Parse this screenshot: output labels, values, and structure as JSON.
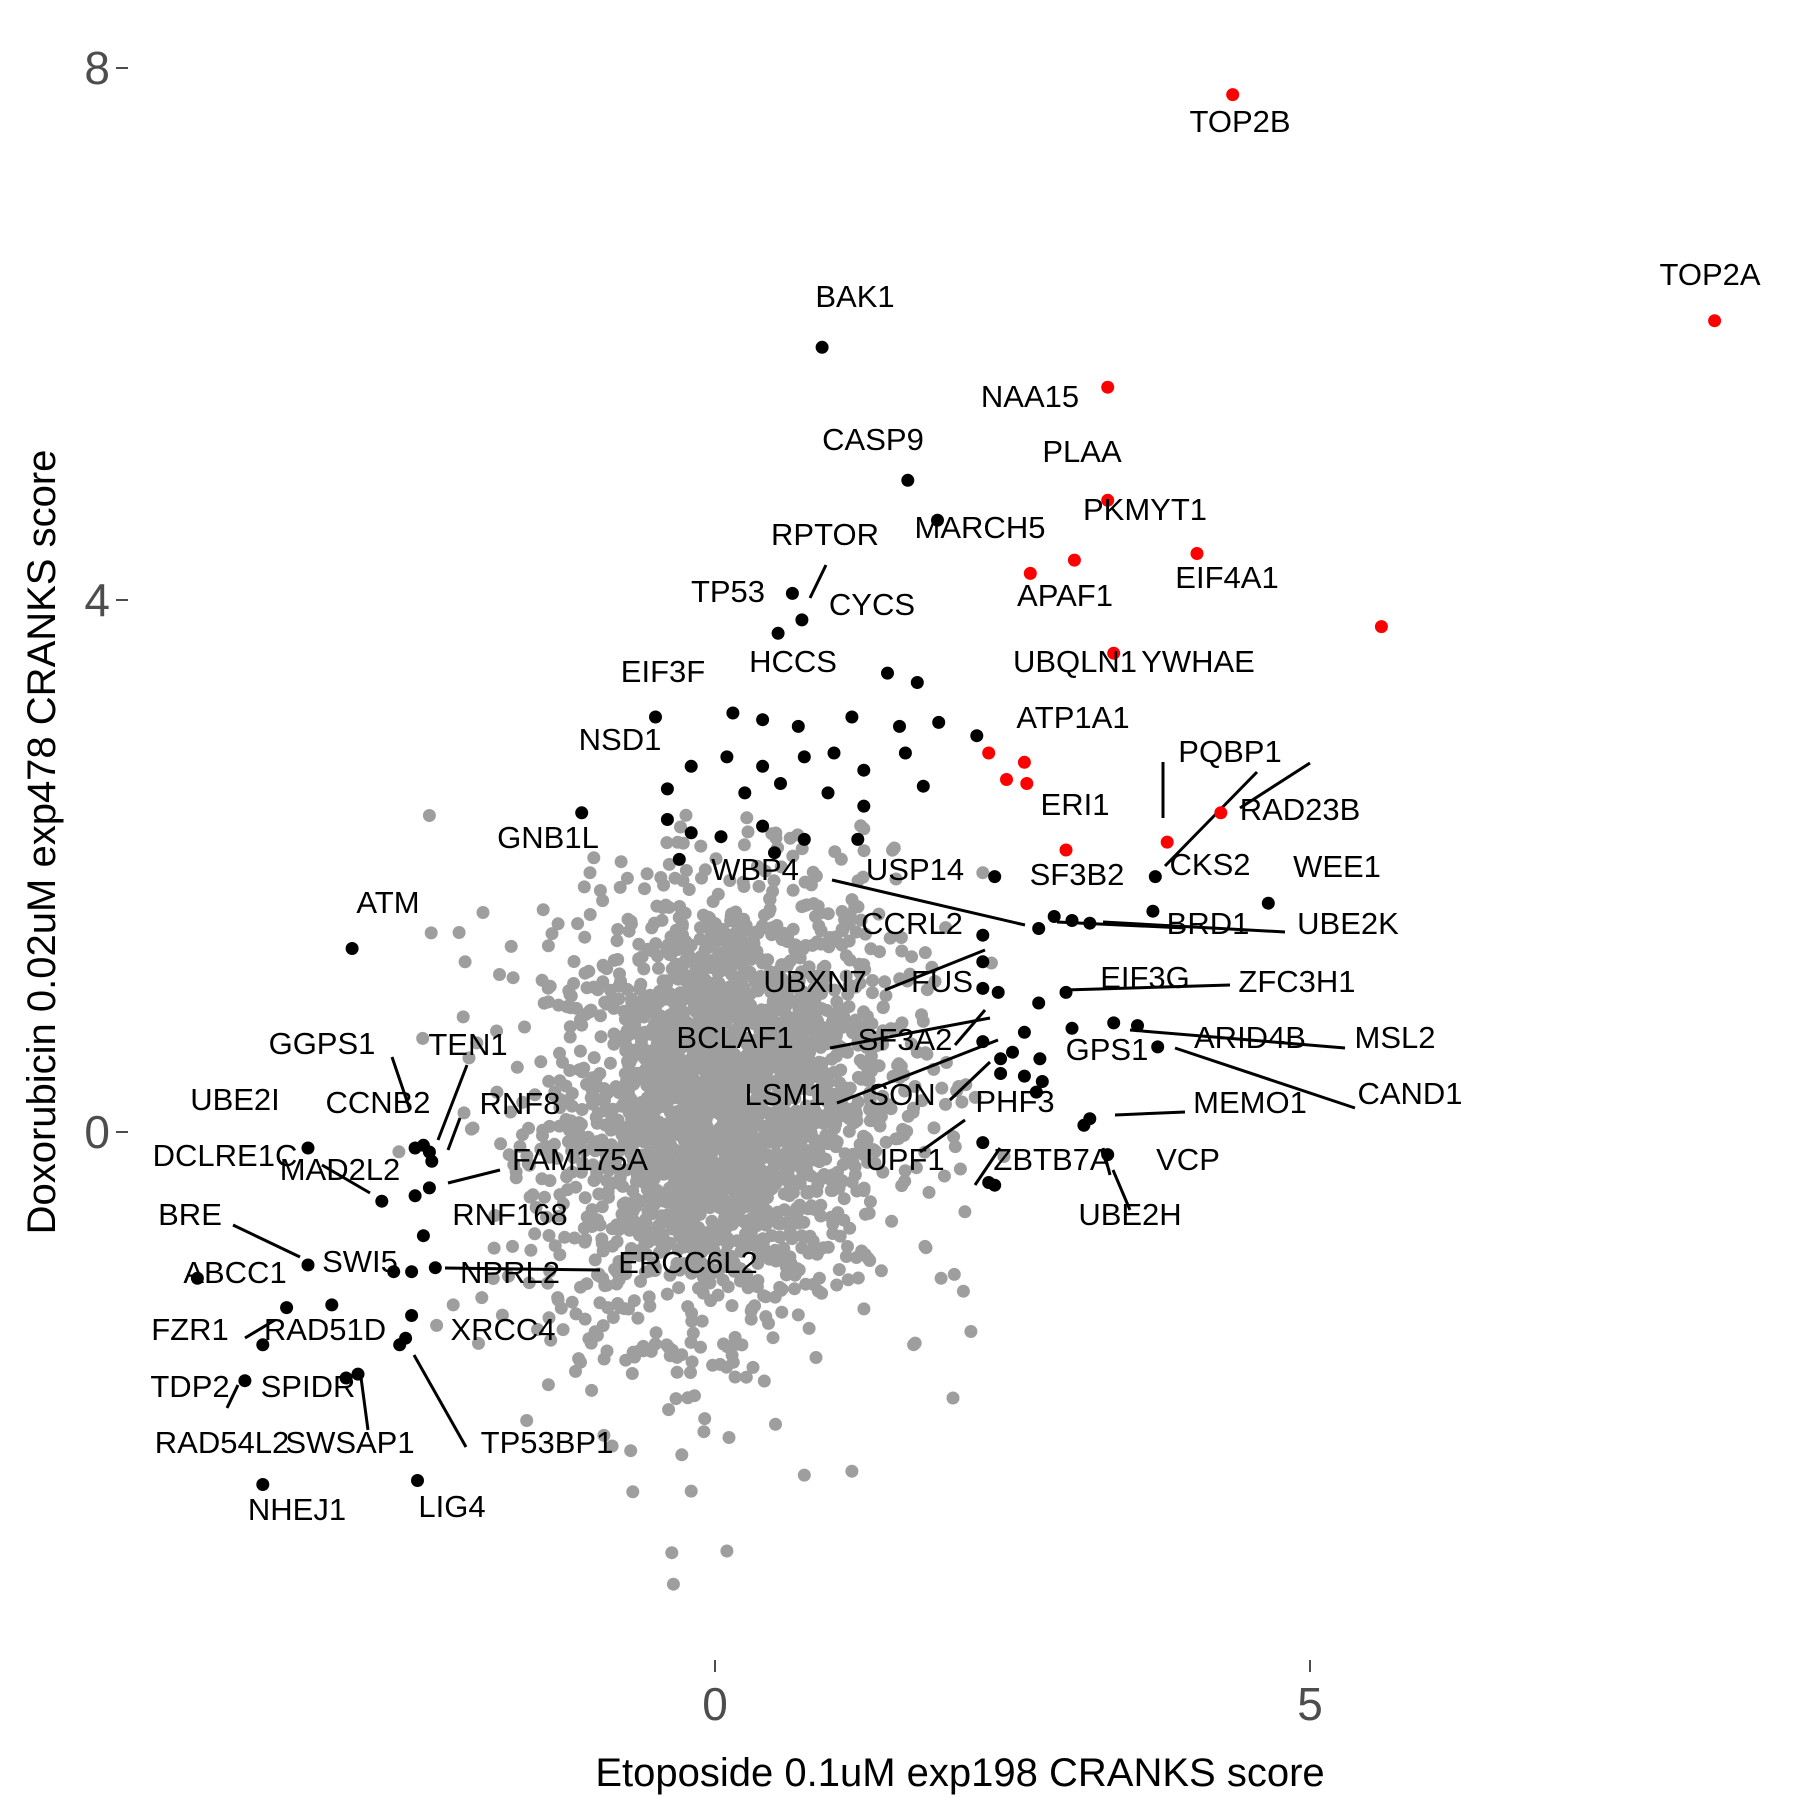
{
  "chart_data": {
    "type": "scatter",
    "xlabel": "Etoposide 0.1uM exp198 CRANKS score",
    "ylabel": "Doxorubicin 0.02uM exp478 CRANKS score",
    "xlim": [
      -5.9,
      8.8
    ],
    "ylim": [
      -4.05,
      8.45
    ],
    "x_ticks": [
      0,
      5
    ],
    "y_ticks": [
      0,
      4,
      8
    ],
    "grid": false,
    "colors": {
      "background": "#000000",
      "labeled": "#000000",
      "highlight": "#ff0000"
    },
    "series": [
      {
        "color": "#ff0000",
        "points": [
          {
            "label": "TOP2B",
            "x": 4.35,
            "y": 7.8
          },
          {
            "label": "TOP2A",
            "x": 8.4,
            "y": 6.1
          },
          {
            "label": "NAA15",
            "x": 3.3,
            "y": 5.6
          },
          {
            "label": "PLAA",
            "x": 3.3,
            "y": 4.75
          },
          {
            "label": "MARCH5",
            "x": 3.02,
            "y": 4.3
          },
          {
            "label": "PKMYT1",
            "x": 4.05,
            "y": 4.35
          },
          {
            "label": "APAF1",
            "x": 2.65,
            "y": 4.2
          },
          {
            "label": "EIF4A1",
            "x": 5.6,
            "y": 3.8
          },
          {
            "label": "YWHAE",
            "x": 3.35,
            "y": 3.6
          },
          {
            "label": "ATP1A1",
            "x": 2.3,
            "y": 2.85
          },
          {
            "label": "",
            "x": 2.6,
            "y": 2.78
          },
          {
            "label": "",
            "x": 2.45,
            "y": 2.65
          },
          {
            "label": "",
            "x": 2.62,
            "y": 2.62
          },
          {
            "label": "ERI1",
            "x": 2.95,
            "y": 2.12
          },
          {
            "label": "PQBP1",
            "x": 3.8,
            "y": 2.18
          },
          {
            "label": "RAD23B",
            "x": 4.25,
            "y": 2.4
          }
        ]
      },
      {
        "color": "#000000",
        "points": [
          {
            "label": "BAK1",
            "x": 0.9,
            "y": 5.9
          },
          {
            "label": "CASP9",
            "x": 1.62,
            "y": 4.9
          },
          {
            "label": "",
            "x": 1.87,
            "y": 4.6
          },
          {
            "label": "RPTOR",
            "x": 0.65,
            "y": 4.05
          },
          {
            "label": "TP53",
            "x": 0.53,
            "y": 3.75
          },
          {
            "label": "CYCS",
            "x": 0.73,
            "y": 3.85
          },
          {
            "label": "HCCS",
            "x": 1.45,
            "y": 3.45
          },
          {
            "label": "UBQLN1",
            "x": 1.7,
            "y": 3.38
          },
          {
            "label": "EIF3F",
            "x": -0.5,
            "y": 3.12
          },
          {
            "label": "",
            "x": 0.15,
            "y": 3.15
          },
          {
            "label": "",
            "x": 0.4,
            "y": 3.1
          },
          {
            "label": "",
            "x": 0.7,
            "y": 3.05
          },
          {
            "label": "",
            "x": 1.15,
            "y": 3.12
          },
          {
            "label": "",
            "x": 1.55,
            "y": 3.05
          },
          {
            "label": "",
            "x": 1.88,
            "y": 3.08
          },
          {
            "label": "",
            "x": 2.2,
            "y": 2.98
          },
          {
            "label": "NSD1",
            "x": -0.2,
            "y": 2.75
          },
          {
            "label": "",
            "x": 0.1,
            "y": 2.82
          },
          {
            "label": "",
            "x": 0.4,
            "y": 2.75
          },
          {
            "label": "",
            "x": 0.75,
            "y": 2.82
          },
          {
            "label": "",
            "x": 1.0,
            "y": 2.85
          },
          {
            "label": "",
            "x": 1.25,
            "y": 2.72
          },
          {
            "label": "",
            "x": 1.6,
            "y": 2.85
          },
          {
            "label": "",
            "x": 1.75,
            "y": 2.6
          },
          {
            "label": "",
            "x": -0.4,
            "y": 2.58
          },
          {
            "label": "",
            "x": 0.25,
            "y": 2.55
          },
          {
            "label": "",
            "x": 0.55,
            "y": 2.62
          },
          {
            "label": "",
            "x": 0.95,
            "y": 2.55
          },
          {
            "label": "",
            "x": 1.25,
            "y": 2.45
          },
          {
            "label": "GNB1L",
            "x": -1.12,
            "y": 2.4
          },
          {
            "label": "",
            "x": -0.4,
            "y": 2.35
          },
          {
            "label": "",
            "x": -0.2,
            "y": 2.25
          },
          {
            "label": "",
            "x": 0.05,
            "y": 2.22
          },
          {
            "label": "",
            "x": 0.4,
            "y": 2.3
          },
          {
            "label": "",
            "x": 0.75,
            "y": 2.2
          },
          {
            "label": "",
            "x": 1.2,
            "y": 2.2
          },
          {
            "label": "",
            "x": -0.3,
            "y": 2.05
          },
          {
            "label": "",
            "x": 0.5,
            "y": 2.1
          },
          {
            "label": "USP14",
            "x": 2.35,
            "y": 1.92
          },
          {
            "label": "SF3B2",
            "x": 3.7,
            "y": 1.92
          },
          {
            "label": "WEE1",
            "x": 4.65,
            "y": 1.72
          },
          {
            "label": "CKS2",
            "x": 3.68,
            "y": 1.66
          },
          {
            "label": "UBE2K",
            "x": 3.0,
            "y": 1.59
          },
          {
            "label": "BRD1",
            "x": 3.15,
            "y": 1.57
          },
          {
            "label": "",
            "x": 2.85,
            "y": 1.62
          },
          {
            "label": "WBP4",
            "x": 2.72,
            "y": 1.53
          },
          {
            "label": "CCRL2",
            "x": 2.25,
            "y": 1.48
          },
          {
            "label": "",
            "x": 2.25,
            "y": 1.28
          },
          {
            "label": "ATM",
            "x": -3.05,
            "y": 1.38
          },
          {
            "label": "UBXN7",
            "x": 2.25,
            "y": 1.08
          },
          {
            "label": "FUS",
            "x": 2.38,
            "y": 1.05
          },
          {
            "label": "EIF3G",
            "x": 2.95,
            "y": 1.05
          },
          {
            "label": "ZFC3H1",
            "x": 2.72,
            "y": 0.97
          },
          {
            "label": "",
            "x": 2.6,
            "y": 0.75
          },
          {
            "label": "MSL2",
            "x": 3.0,
            "y": 0.78
          },
          {
            "label": "ARID4B",
            "x": 3.35,
            "y": 0.82
          },
          {
            "label": "",
            "x": 3.55,
            "y": 0.8
          },
          {
            "label": "CAND1",
            "x": 3.72,
            "y": 0.64
          },
          {
            "label": "BCLAF1",
            "x": 2.25,
            "y": 0.68
          },
          {
            "label": "SF3A2",
            "x": 2.5,
            "y": 0.6
          },
          {
            "label": "GPS1",
            "x": 2.73,
            "y": 0.55
          },
          {
            "label": "LSM1",
            "x": 2.4,
            "y": 0.55
          },
          {
            "label": "SON",
            "x": 2.4,
            "y": 0.44
          },
          {
            "label": "",
            "x": 2.6,
            "y": 0.42
          },
          {
            "label": "",
            "x": 2.75,
            "y": 0.38
          },
          {
            "label": "PHF3",
            "x": 2.7,
            "y": 0.3
          },
          {
            "label": "MEMO1",
            "x": 3.15,
            "y": 0.1
          },
          {
            "label": "VCP",
            "x": 3.1,
            "y": 0.05
          },
          {
            "label": "UBE2H",
            "x": 3.3,
            "y": -0.17
          },
          {
            "label": "",
            "x": 2.25,
            "y": -0.08
          },
          {
            "label": "ZBTB7A",
            "x": 2.35,
            "y": -0.4
          },
          {
            "label": "UPF1",
            "x": 2.3,
            "y": -0.38
          },
          {
            "label": "GGPS1",
            "x": -2.52,
            "y": -0.12
          },
          {
            "label": "TEN1",
            "x": -2.4,
            "y": -0.15
          },
          {
            "label": "CCNB2",
            "x": -2.45,
            "y": -0.1
          },
          {
            "label": "RNF8",
            "x": -2.38,
            "y": -0.22
          },
          {
            "label": "UBE2I",
            "x": -3.42,
            "y": -0.12
          },
          {
            "label": "DCLRE1C",
            "x": -2.8,
            "y": -0.52
          },
          {
            "label": "MAD2L2",
            "x": -2.52,
            "y": -0.48
          },
          {
            "label": "FAM175A",
            "x": -2.4,
            "y": -0.42
          },
          {
            "label": "RNF168",
            "x": -2.45,
            "y": -0.78
          },
          {
            "label": "BRE",
            "x": -3.42,
            "y": -1.0
          },
          {
            "label": "NPRL2",
            "x": -2.55,
            "y": -1.05
          },
          {
            "label": "ERCC6L2",
            "x": -2.35,
            "y": -1.02
          },
          {
            "label": "ABCC1",
            "x": -4.35,
            "y": -1.1
          },
          {
            "label": "SWI5",
            "x": -2.7,
            "y": -1.05
          },
          {
            "label": "FZR1",
            "x": -3.6,
            "y": -1.32
          },
          {
            "label": "",
            "x": -3.22,
            "y": -1.3
          },
          {
            "label": "RAD51D",
            "x": -2.55,
            "y": -1.38
          },
          {
            "label": "XRCC4",
            "x": -2.6,
            "y": -1.55
          },
          {
            "label": "TP53BP1",
            "x": -2.65,
            "y": -1.6
          },
          {
            "label": "TDP2",
            "x": -3.8,
            "y": -1.6
          },
          {
            "label": "SPIDR",
            "x": -3.0,
            "y": -1.82
          },
          {
            "label": "RAD54L2",
            "x": -3.95,
            "y": -1.87
          },
          {
            "label": "SWSAP1",
            "x": -3.1,
            "y": -1.85
          },
          {
            "label": "NHEJ1",
            "x": -3.8,
            "y": -2.65
          },
          {
            "label": "LIG4",
            "x": -2.5,
            "y": -2.62
          }
        ]
      }
    ]
  }
}
